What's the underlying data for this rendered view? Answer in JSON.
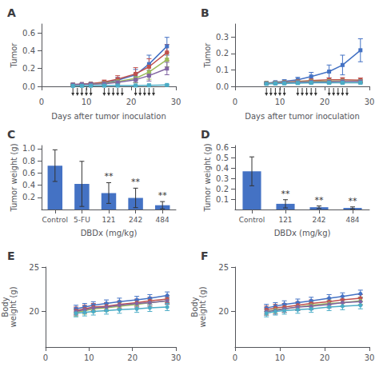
{
  "chart_data": [
    {
      "type": "line",
      "title": "A",
      "xlabel": "Days after tumor inoculation",
      "ylabel": "Tumor",
      "x": [
        7,
        9,
        11,
        14,
        17,
        21,
        24,
        28
      ],
      "series": [
        {
          "color": "#4472C4",
          "values": [
            0.02,
            0.025,
            0.03,
            0.04,
            0.07,
            0.13,
            0.25,
            0.45
          ],
          "errors": [
            0.005,
            0.007,
            0.01,
            0.015,
            0.03,
            0.06,
            0.1,
            0.1
          ]
        },
        {
          "color": "#C0504D",
          "values": [
            0.02,
            0.025,
            0.03,
            0.05,
            0.08,
            0.14,
            0.22,
            0.38
          ],
          "errors": [
            0.005,
            0.007,
            0.01,
            0.02,
            0.04,
            0.07,
            0.09,
            0.09
          ]
        },
        {
          "color": "#9BBB59",
          "values": [
            0.02,
            0.022,
            0.025,
            0.035,
            0.055,
            0.09,
            0.16,
            0.3
          ],
          "errors": [
            0.004,
            0.006,
            0.008,
            0.015,
            0.025,
            0.05,
            0.08,
            0.08
          ]
        },
        {
          "color": "#8064A2",
          "values": [
            0.02,
            0.022,
            0.025,
            0.03,
            0.045,
            0.075,
            0.12,
            0.2
          ],
          "errors": [
            0.004,
            0.005,
            0.007,
            0.01,
            0.018,
            0.03,
            0.06,
            0.07
          ]
        },
        {
          "color": "#4BACC6",
          "values": [
            0.005,
            0.006,
            0.007,
            0.008,
            0.009,
            0.01,
            0.012,
            0.015
          ],
          "errors": [
            0.002,
            0.002,
            0.003,
            0.003,
            0.003,
            0.003,
            0.004,
            0.005
          ]
        }
      ],
      "marker": "square",
      "grid": false,
      "xlim": [
        0,
        30
      ],
      "xticks": [
        0,
        10,
        20,
        30
      ],
      "ylim": [
        0,
        0.7
      ],
      "yticks": [
        {
          "value": 0,
          "label": "0.0"
        },
        0.2,
        0.4,
        0.6
      ],
      "arrows": [
        7,
        8,
        9,
        10,
        11,
        14,
        15,
        16,
        17,
        18,
        21,
        22,
        23,
        24,
        25
      ]
    },
    {
      "type": "line",
      "title": "B",
      "xlabel": "Days after tumor inoculation",
      "ylabel": "Tumor",
      "x": [
        7,
        9,
        11,
        14,
        17,
        21,
        24,
        28
      ],
      "series": [
        {
          "color": "#4472C4",
          "values": [
            0.02,
            0.025,
            0.03,
            0.04,
            0.06,
            0.09,
            0.13,
            0.22
          ],
          "errors": [
            0.005,
            0.007,
            0.01,
            0.015,
            0.025,
            0.04,
            0.06,
            0.07
          ]
        },
        {
          "color": "#C0504D",
          "values": [
            0.02,
            0.022,
            0.025,
            0.03,
            0.035,
            0.04,
            0.04,
            0.038
          ],
          "errors": [
            0.005,
            0.006,
            0.007,
            0.009,
            0.01,
            0.012,
            0.013,
            0.013
          ]
        },
        {
          "color": "#9BBB59",
          "values": [
            0.02,
            0.022,
            0.024,
            0.028,
            0.03,
            0.032,
            0.033,
            0.032
          ],
          "errors": [
            0.004,
            0.005,
            0.006,
            0.008,
            0.009,
            0.01,
            0.01,
            0.01
          ]
        },
        {
          "color": "#8064A2",
          "values": [
            0.018,
            0.02,
            0.022,
            0.025,
            0.027,
            0.028,
            0.03,
            0.03
          ],
          "errors": [
            0.004,
            0.004,
            0.005,
            0.007,
            0.008,
            0.008,
            0.009,
            0.009
          ]
        },
        {
          "color": "#4BACC6",
          "values": [
            0.015,
            0.017,
            0.018,
            0.02,
            0.022,
            0.022,
            0.022,
            0.022
          ],
          "errors": [
            0.003,
            0.004,
            0.004,
            0.005,
            0.006,
            0.006,
            0.006,
            0.006
          ]
        }
      ],
      "marker": "square",
      "grid": false,
      "xlim": [
        0,
        30
      ],
      "xticks": [
        0,
        10,
        20,
        30
      ],
      "ylim": [
        0,
        0.38
      ],
      "yticks": [
        {
          "value": 0,
          "label": "0.0"
        },
        0.1,
        0.2,
        0.3
      ],
      "arrows": [
        7,
        8,
        9,
        10,
        11,
        14,
        15,
        16,
        17,
        18,
        21,
        22,
        23,
        24,
        25
      ]
    },
    {
      "type": "bar",
      "title": "C",
      "xlabel": "DBDx (mg/kg)",
      "ylabel": "Tumor weight (g)",
      "categories": [
        "Control",
        "5-FU",
        "121",
        "242",
        "484"
      ],
      "values": [
        0.72,
        0.42,
        0.27,
        0.19,
        0.07
      ],
      "errors": [
        0.26,
        0.37,
        0.17,
        0.16,
        0.06
      ],
      "annotations": [
        null,
        null,
        "**",
        "**",
        "**"
      ],
      "color": "#4472C4",
      "grid": false,
      "ylim": [
        0,
        1.05
      ],
      "yticks": [
        0.2,
        0.4,
        0.6,
        0.8,
        {
          "value": 1,
          "label": "1.0"
        }
      ]
    },
    {
      "type": "bar",
      "title": "D",
      "xlabel": "DBDx (mg/kg)",
      "ylabel": "Tumor weight (g)",
      "categories": [
        "Control",
        "121",
        "242",
        "484"
      ],
      "values": [
        0.37,
        0.055,
        0.022,
        0.015
      ],
      "errors": [
        0.14,
        0.04,
        0.012,
        0.01
      ],
      "annotations": [
        null,
        "**",
        "**",
        "**"
      ],
      "color": "#4472C4",
      "grid": false,
      "ylim": [
        0,
        0.62
      ],
      "yticks": [
        0.1,
        0.2,
        0.3,
        0.4,
        0.5,
        0.6
      ]
    },
    {
      "type": "line",
      "title": "E",
      "ylabel": "Body\nweight (g)",
      "x": [
        7,
        9,
        11,
        14,
        17,
        21,
        24,
        28
      ],
      "series": [
        {
          "color": "#4472C4",
          "values": [
            20.3,
            20.5,
            20.7,
            20.9,
            21.1,
            21.3,
            21.5,
            21.8
          ],
          "errors": [
            0.4,
            0.4,
            0.4,
            0.4,
            0.4,
            0.4,
            0.4,
            0.4
          ]
        },
        {
          "color": "#C0504D",
          "values": [
            20.1,
            20.3,
            20.5,
            20.6,
            20.8,
            21.0,
            21.2,
            21.4
          ],
          "errors": [
            0.4,
            0.4,
            0.4,
            0.4,
            0.4,
            0.4,
            0.4,
            0.4
          ]
        },
        {
          "color": "#9BBB59",
          "values": [
            19.9,
            20.1,
            20.3,
            20.4,
            20.6,
            20.8,
            21.0,
            21.2
          ],
          "errors": [
            0.4,
            0.4,
            0.4,
            0.4,
            0.4,
            0.4,
            0.4,
            0.4
          ]
        },
        {
          "color": "#8064A2",
          "values": [
            20.0,
            20.2,
            20.4,
            20.5,
            20.7,
            20.9,
            21.0,
            21.2
          ],
          "errors": [
            0.4,
            0.4,
            0.4,
            0.4,
            0.4,
            0.4,
            0.4,
            0.4
          ]
        },
        {
          "color": "#4BACC6",
          "values": [
            19.8,
            19.9,
            20.0,
            20.1,
            20.2,
            20.3,
            20.4,
            20.5
          ],
          "errors": [
            0.4,
            0.4,
            0.4,
            0.4,
            0.4,
            0.4,
            0.4,
            0.4
          ]
        }
      ],
      "marker": "circle",
      "grid": false,
      "xlim": [
        0,
        30
      ],
      "xticks": [
        0,
        10,
        20,
        30
      ],
      "ylim": [
        16,
        25
      ],
      "yticks": [
        20,
        25
      ]
    },
    {
      "type": "line",
      "title": "F",
      "ylabel": "Body\nweight (g)",
      "x": [
        7,
        9,
        11,
        14,
        17,
        21,
        24,
        28
      ],
      "series": [
        {
          "color": "#4472C4",
          "values": [
            20.4,
            20.6,
            20.8,
            21.0,
            21.2,
            21.5,
            21.7,
            22.0
          ],
          "errors": [
            0.4,
            0.4,
            0.4,
            0.4,
            0.4,
            0.4,
            0.4,
            0.4
          ]
        },
        {
          "color": "#C0504D",
          "values": [
            20.2,
            20.4,
            20.5,
            20.7,
            20.9,
            21.1,
            21.3,
            21.5
          ],
          "errors": [
            0.4,
            0.4,
            0.4,
            0.4,
            0.4,
            0.4,
            0.4,
            0.4
          ]
        },
        {
          "color": "#9BBB59",
          "values": [
            20.0,
            20.2,
            20.3,
            20.5,
            20.7,
            20.9,
            21.0,
            21.2
          ],
          "errors": [
            0.4,
            0.4,
            0.4,
            0.4,
            0.4,
            0.4,
            0.4,
            0.4
          ]
        },
        {
          "color": "#8064A2",
          "values": [
            20.0,
            20.1,
            20.3,
            20.5,
            20.6,
            20.8,
            21.0,
            21.1
          ],
          "errors": [
            0.4,
            0.4,
            0.4,
            0.4,
            0.4,
            0.4,
            0.4,
            0.4
          ]
        },
        {
          "color": "#4BACC6",
          "values": [
            19.8,
            20.0,
            20.1,
            20.2,
            20.3,
            20.5,
            20.6,
            20.7
          ],
          "errors": [
            0.4,
            0.4,
            0.4,
            0.4,
            0.4,
            0.4,
            0.4,
            0.4
          ]
        }
      ],
      "marker": "circle",
      "grid": false,
      "xlim": [
        0,
        30
      ],
      "xticks": [
        0,
        10,
        20,
        30
      ],
      "ylim": [
        16,
        25
      ],
      "yticks": [
        20,
        25
      ]
    }
  ]
}
